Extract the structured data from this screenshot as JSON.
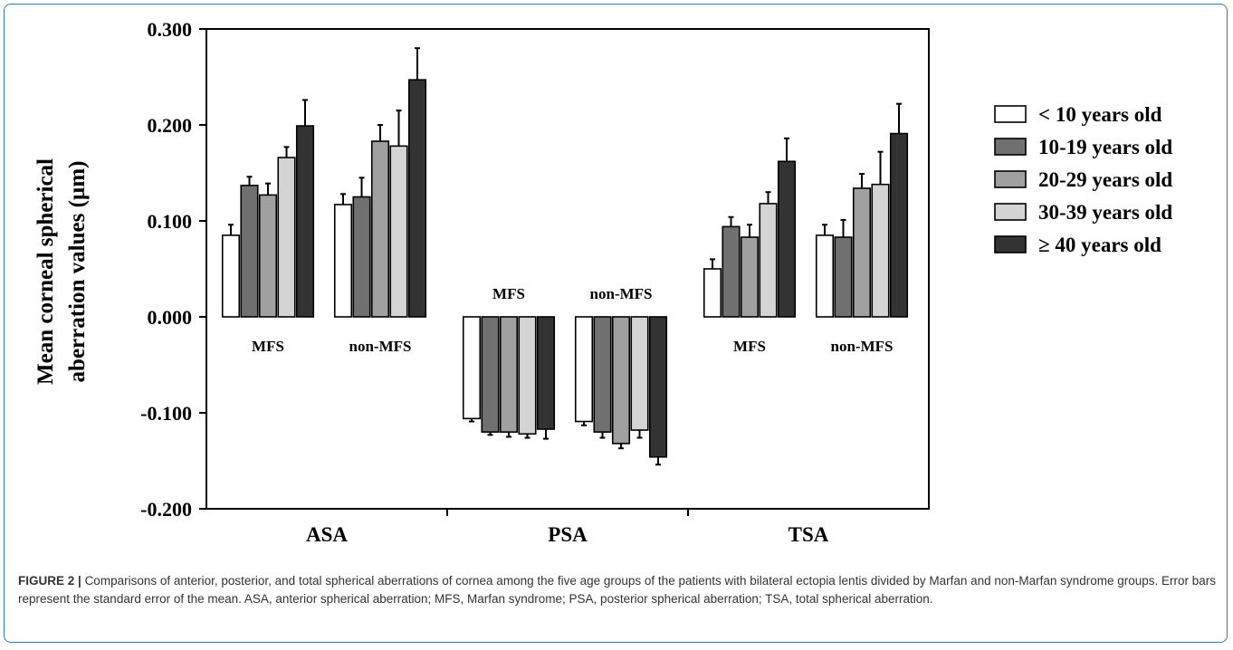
{
  "chart_data": {
    "type": "bar",
    "ylabel": "Mean corneal spherical aberration values (µm)",
    "ylabel_lines": [
      "Mean corneal spherical",
      "aberration values (µm)"
    ],
    "ylim": [
      -0.2,
      0.3
    ],
    "yticks": [
      0.3,
      0.2,
      0.1,
      0.0,
      -0.1,
      -0.2
    ],
    "ytick_labels": [
      "0.300",
      "0.200",
      "0.100",
      "0.000",
      "-0.100",
      "-0.200"
    ],
    "categories": [
      "ASA",
      "PSA",
      "TSA"
    ],
    "groups": [
      "MFS",
      "non-MFS"
    ],
    "legend_position": "right",
    "grid": false,
    "series": [
      {
        "name": "< 10 years old",
        "color": "#ffffff",
        "values": [
          [
            0.085,
            0.117
          ],
          [
            -0.106,
            -0.109
          ],
          [
            0.05,
            0.085
          ]
        ],
        "errors": [
          [
            0.011,
            0.011
          ],
          [
            0.003,
            0.004
          ],
          [
            0.01,
            0.011
          ]
        ]
      },
      {
        "name": "10-19 years old",
        "color": "#707070",
        "values": [
          [
            0.137,
            0.125
          ],
          [
            -0.12,
            -0.12
          ],
          [
            0.094,
            0.083
          ]
        ],
        "errors": [
          [
            0.009,
            0.02
          ],
          [
            0.003,
            0.006
          ],
          [
            0.01,
            0.018
          ]
        ]
      },
      {
        "name": "20-29 years old",
        "color": "#a0a0a0",
        "values": [
          [
            0.127,
            0.183
          ],
          [
            -0.12,
            -0.132
          ],
          [
            0.083,
            0.134
          ]
        ],
        "errors": [
          [
            0.012,
            0.017
          ],
          [
            0.005,
            0.005
          ],
          [
            0.013,
            0.015
          ]
        ]
      },
      {
        "name": "30-39 years old",
        "color": "#d4d4d4",
        "values": [
          [
            0.166,
            0.178
          ],
          [
            -0.122,
            -0.118
          ],
          [
            0.118,
            0.138
          ]
        ],
        "errors": [
          [
            0.011,
            0.037
          ],
          [
            0.004,
            0.008
          ],
          [
            0.012,
            0.034
          ]
        ]
      },
      {
        "name": "≥ 40 years old",
        "color": "#333333",
        "values": [
          [
            0.199,
            0.247
          ],
          [
            -0.117,
            -0.146
          ],
          [
            0.162,
            0.191
          ]
        ],
        "errors": [
          [
            0.027,
            0.033
          ],
          [
            0.01,
            0.008
          ],
          [
            0.024,
            0.031
          ]
        ]
      }
    ]
  },
  "caption": {
    "label": "FIGURE 2 |",
    "text": "Comparisons of anterior, posterior, and total spherical aberrations of cornea among the five age groups of the patients with bilateral ectopia lentis divided by Marfan and non-Marfan syndrome groups. Error bars represent the standard error of the mean. ASA, anterior spherical aberration; MFS, Marfan syndrome; PSA, posterior spherical aberration; TSA, total spherical aberration."
  }
}
